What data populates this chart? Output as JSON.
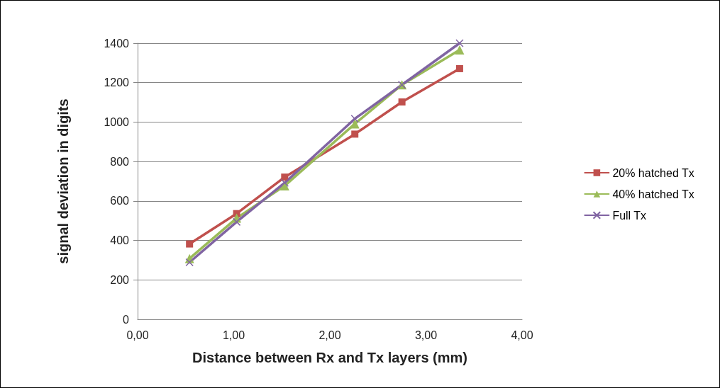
{
  "chart_data": {
    "type": "line",
    "xlabel": "Distance between Rx and Tx layers (mm)",
    "ylabel": "signal deviation in digits",
    "x": [
      0.54,
      1.03,
      1.53,
      2.26,
      2.75,
      3.35
    ],
    "series": [
      {
        "name": "20% hatched Tx",
        "color": "#c0504d",
        "marker": "square",
        "values": [
          382,
          536,
          721,
          939,
          1102,
          1271
        ]
      },
      {
        "name": "40% hatched Tx",
        "color": "#9bbb59",
        "marker": "triangle",
        "values": [
          308,
          513,
          677,
          991,
          1189,
          1366
        ]
      },
      {
        "name": "Full Tx",
        "color": "#8064a2",
        "marker": "cross",
        "values": [
          289,
          494,
          692,
          1017,
          1189,
          1400
        ]
      }
    ],
    "xlim": [
      0,
      4
    ],
    "xticks": [
      {
        "value": 0,
        "label": "0,00"
      },
      {
        "value": 1,
        "label": "1,00"
      },
      {
        "value": 2,
        "label": "2,00"
      },
      {
        "value": 3,
        "label": "3,00"
      },
      {
        "value": 4,
        "label": "4,00"
      }
    ],
    "ylim": [
      0,
      1400
    ],
    "yticks": [
      0,
      200,
      400,
      600,
      800,
      1000,
      1200,
      1400
    ],
    "grid": "y",
    "legend": "right",
    "line_style": "solid"
  }
}
